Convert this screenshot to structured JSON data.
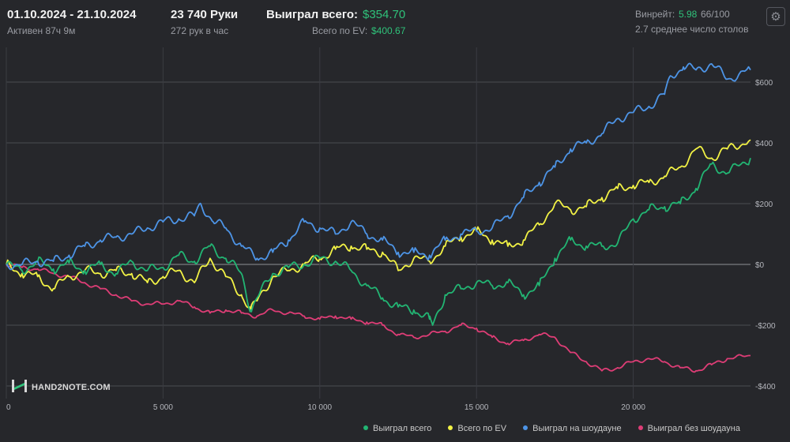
{
  "header": {
    "date_range": "01.10.2024 - 21.10.2024",
    "active_time": "Активен 87ч 9м",
    "hands_count": "23 740 Руки",
    "hands_per_hour": "272 рук в час",
    "won_total_label": "Выиграл всего:",
    "won_total_value": "$354.70",
    "ev_total_label": "Всего по EV:",
    "ev_total_value": "$400.67",
    "winrate_label": "Винрейт:",
    "winrate_value": "5.98",
    "winrate_sample": "66/100",
    "avg_tables": "2.7 среднее число столов"
  },
  "logo": {
    "text": "HAND2NOTE.COM"
  },
  "colors": {
    "background": "#26272b",
    "accent_green": "#2fc27a",
    "won_total": "#22b573",
    "ev_total": "#f2f245",
    "showdown": "#4d94e6",
    "non_showdown": "#de3d76"
  },
  "chart_data": {
    "type": "line",
    "xlim": [
      0,
      23740
    ],
    "ylim": [
      -400,
      700
    ],
    "x_ticks": [
      0,
      5000,
      10000,
      15000,
      20000
    ],
    "x_tick_labels": [
      "0",
      "5 000",
      "10 000",
      "15 000",
      "20 000"
    ],
    "y_ticks": [
      600,
      400,
      200,
      0,
      -200,
      -400
    ],
    "y_tick_labels": [
      "$600",
      "$400",
      "$200",
      "$0",
      "-$200",
      "-$400"
    ],
    "grid": true,
    "legend_position": "bottom-right",
    "series": [
      {
        "name": "Выиграл всего",
        "color": "#22b573",
        "x": [
          0,
          500,
          1000,
          1500,
          2000,
          2500,
          3000,
          3500,
          4000,
          4500,
          5000,
          5500,
          6000,
          6500,
          7000,
          7500,
          7800,
          8000,
          8500,
          9000,
          9500,
          10000,
          10500,
          11000,
          11500,
          12000,
          12500,
          13000,
          13500,
          13600,
          14000,
          14500,
          15000,
          15500,
          16000,
          16500,
          17000,
          17500,
          18000,
          18500,
          19000,
          19500,
          20000,
          20500,
          21000,
          21500,
          22000,
          22500,
          23000,
          23740
        ],
        "y": [
          0,
          -20,
          10,
          -15,
          5,
          -20,
          0,
          -30,
          10,
          -20,
          -10,
          30,
          10,
          60,
          20,
          -30,
          -150,
          -110,
          -30,
          -10,
          0,
          20,
          10,
          -20,
          -70,
          -110,
          -140,
          -150,
          -180,
          -200,
          -100,
          -80,
          -60,
          -70,
          -60,
          -100,
          -70,
          20,
          80,
          60,
          60,
          70,
          150,
          180,
          190,
          200,
          250,
          330,
          300,
          350
        ]
      },
      {
        "name": "Всего по EV",
        "color": "#f2f245",
        "x": [
          0,
          500,
          1000,
          1500,
          2000,
          2500,
          3000,
          3500,
          4000,
          4500,
          5000,
          5500,
          6000,
          6500,
          7000,
          7500,
          7800,
          8000,
          8500,
          9000,
          9500,
          10000,
          10500,
          11000,
          11500,
          12000,
          12500,
          13000,
          13500,
          14000,
          14500,
          15000,
          15500,
          16000,
          16500,
          17000,
          17500,
          18000,
          18500,
          19000,
          19500,
          20000,
          20500,
          21000,
          21500,
          22000,
          22500,
          23000,
          23740
        ],
        "y": [
          0,
          -30,
          -40,
          -80,
          -40,
          -20,
          -30,
          -20,
          -30,
          -60,
          -40,
          -20,
          -60,
          20,
          -40,
          -100,
          -150,
          -120,
          -40,
          -20,
          0,
          20,
          50,
          60,
          50,
          40,
          -20,
          20,
          10,
          60,
          90,
          110,
          80,
          60,
          80,
          130,
          200,
          180,
          190,
          220,
          250,
          260,
          270,
          290,
          320,
          380,
          350,
          380,
          410
        ]
      },
      {
        "name": "Выиграл на шоудауне",
        "color": "#4d94e6",
        "x": [
          0,
          500,
          1000,
          1500,
          2000,
          2500,
          3000,
          3500,
          4000,
          4500,
          5000,
          5500,
          6000,
          6200,
          6600,
          7000,
          7500,
          8000,
          8500,
          9000,
          9500,
          10000,
          10500,
          11000,
          11500,
          12000,
          12500,
          13000,
          13500,
          14000,
          14500,
          15000,
          15500,
          16000,
          16500,
          17000,
          17500,
          18000,
          18500,
          19000,
          19500,
          20000,
          20500,
          21000,
          21200,
          21600,
          22000,
          22500,
          23000,
          23740
        ],
        "y": [
          0,
          0,
          10,
          10,
          30,
          60,
          80,
          90,
          100,
          120,
          140,
          150,
          160,
          200,
          140,
          120,
          60,
          20,
          40,
          80,
          140,
          120,
          100,
          140,
          100,
          80,
          40,
          40,
          30,
          80,
          100,
          110,
          120,
          160,
          220,
          270,
          320,
          380,
          400,
          430,
          480,
          500,
          520,
          560,
          620,
          650,
          640,
          660,
          610,
          640
        ]
      },
      {
        "name": "Выиграл без шоудауна",
        "color": "#de3d76",
        "x": [
          0,
          500,
          1000,
          1500,
          2000,
          2500,
          3000,
          3500,
          4000,
          4500,
          5000,
          5500,
          6000,
          6500,
          7000,
          7500,
          8000,
          8500,
          9000,
          9500,
          10000,
          10500,
          11000,
          11500,
          12000,
          12500,
          13000,
          13500,
          14000,
          14500,
          15000,
          15500,
          16000,
          16500,
          17000,
          17500,
          18000,
          18500,
          19000,
          19500,
          20000,
          20500,
          21000,
          21500,
          22000,
          22500,
          23000,
          23740
        ],
        "y": [
          0,
          -10,
          -15,
          -30,
          -40,
          -60,
          -80,
          -100,
          -120,
          -130,
          -130,
          -120,
          -140,
          -160,
          -150,
          -160,
          -170,
          -150,
          -160,
          -170,
          -180,
          -170,
          -180,
          -190,
          -200,
          -230,
          -240,
          -230,
          -220,
          -200,
          -210,
          -240,
          -260,
          -250,
          -230,
          -240,
          -290,
          -320,
          -350,
          -340,
          -320,
          -310,
          -320,
          -340,
          -350,
          -330,
          -310,
          -300
        ]
      }
    ]
  }
}
